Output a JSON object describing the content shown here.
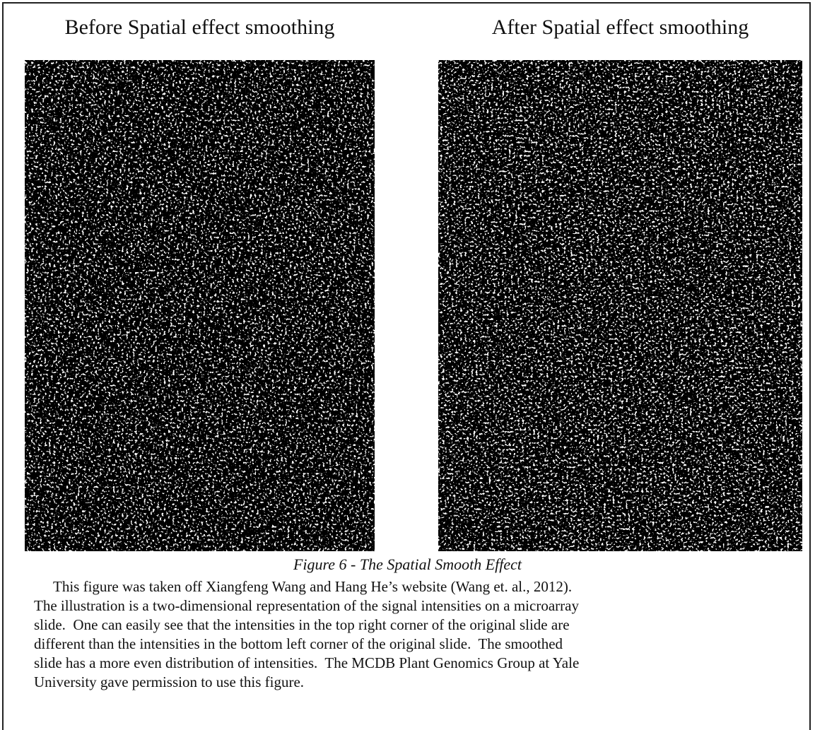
{
  "figure": {
    "panels": [
      {
        "title": "Before Spatial effect smoothing"
      },
      {
        "title": "After Spatial effect smoothing"
      }
    ],
    "caption": "Figure 6 - The Spatial Smooth Effect",
    "paragraph": [
      "This figure was taken off Xiangfeng Wang and Hang He’s website (Wang et. al., 2012).",
      "The illustration is a two-dimensional representation of the signal intensities on a microarray",
      "slide.  One can easily see that the intensities in the top right corner of the original slide are",
      "different than the intensities in the bottom left corner of the original slide.  The smoothed",
      "slide has a more even distribution of intensities.  The MCDB Plant Genomics Group at Yale",
      "University gave permission to use this figure."
    ]
  }
}
